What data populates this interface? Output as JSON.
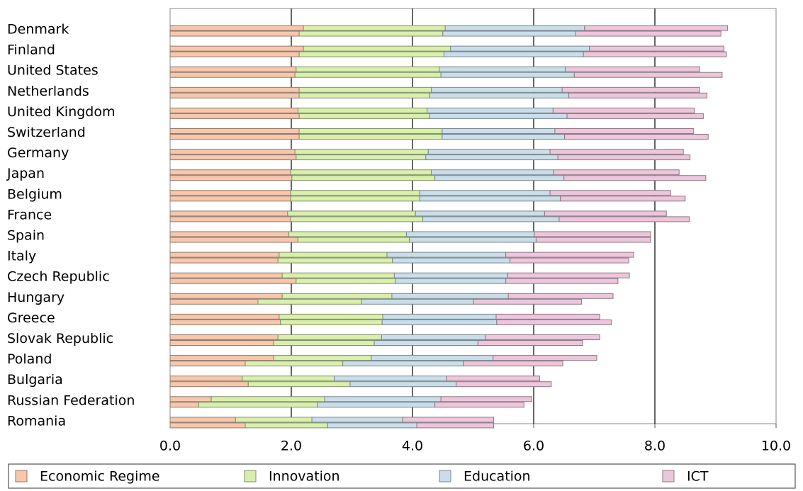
{
  "chart_data": {
    "type": "bar",
    "orientation": "horizontal",
    "stacked": true,
    "grid": true,
    "categories": [
      "Denmark",
      "Finland",
      "United States",
      "Netherlands",
      "United Kingdom",
      "Switzerland",
      "Germany",
      "Japan",
      "Belgium",
      "France",
      "Spain",
      "Italy",
      "Czech Republic",
      "Hungary",
      "Greece",
      "Slovak Republic",
      "Poland",
      "Bulgaria",
      "Russian Federation",
      "Romania"
    ],
    "series": [
      {
        "name": "Economic Regime",
        "color": "#f5c8ad",
        "values": [
          [
            2.2,
            2.13
          ],
          [
            2.2,
            2.13
          ],
          [
            2.08,
            2.06
          ],
          [
            2.13,
            2.13
          ],
          [
            2.11,
            2.13
          ],
          [
            2.13,
            2.13
          ],
          [
            2.06,
            2.08
          ],
          [
            1.99,
            2.01
          ],
          [
            1.99,
            1.99
          ],
          [
            1.94,
            1.99
          ],
          [
            1.96,
            2.11
          ],
          [
            1.8,
            1.78
          ],
          [
            1.85,
            2.08
          ],
          [
            1.85,
            1.45
          ],
          [
            1.8,
            1.82
          ],
          [
            1.78,
            1.71
          ],
          [
            1.71,
            1.24
          ],
          [
            1.19,
            1.29
          ],
          [
            0.68,
            0.47
          ],
          [
            1.08,
            1.24
          ]
        ]
      },
      {
        "name": "Innovation",
        "color": "#d8efad",
        "values": [
          [
            2.34,
            2.37
          ],
          [
            2.43,
            2.39
          ],
          [
            2.36,
            2.41
          ],
          [
            2.18,
            2.15
          ],
          [
            2.13,
            2.15
          ],
          [
            2.36,
            2.36
          ],
          [
            2.2,
            2.14
          ],
          [
            2.32,
            2.36
          ],
          [
            2.13,
            2.13
          ],
          [
            2.11,
            2.18
          ],
          [
            1.94,
            1.84
          ],
          [
            1.78,
            1.89
          ],
          [
            1.85,
            1.64
          ],
          [
            1.81,
            1.71
          ],
          [
            1.71,
            1.68
          ],
          [
            1.71,
            1.66
          ],
          [
            1.61,
            1.61
          ],
          [
            1.52,
            1.68
          ],
          [
            1.87,
            1.96
          ],
          [
            1.26,
            1.36
          ]
        ]
      },
      {
        "name": "Education",
        "color": "#cadeea",
        "values": [
          [
            2.3,
            2.19
          ],
          [
            2.29,
            2.3
          ],
          [
            2.08,
            2.2
          ],
          [
            2.16,
            2.3
          ],
          [
            2.08,
            2.27
          ],
          [
            1.86,
            2.02
          ],
          [
            2.01,
            2.18
          ],
          [
            2.02,
            2.13
          ],
          [
            2.15,
            2.32
          ],
          [
            2.13,
            2.25
          ],
          [
            2.11,
            2.09
          ],
          [
            1.96,
            1.94
          ],
          [
            1.87,
            1.82
          ],
          [
            1.92,
            1.85
          ],
          [
            1.87,
            1.89
          ],
          [
            1.71,
            1.71
          ],
          [
            2.01,
            1.99
          ],
          [
            1.85,
            1.75
          ],
          [
            1.92,
            1.94
          ],
          [
            1.5,
            1.47
          ]
        ]
      },
      {
        "name": "ICT",
        "color": "#ecc6da",
        "values": [
          [
            2.36,
            2.4
          ],
          [
            2.22,
            2.36
          ],
          [
            2.22,
            2.44
          ],
          [
            2.27,
            2.28
          ],
          [
            2.33,
            2.25
          ],
          [
            2.29,
            2.37
          ],
          [
            2.2,
            2.18
          ],
          [
            2.07,
            2.34
          ],
          [
            1.99,
            2.06
          ],
          [
            2.01,
            2.15
          ],
          [
            1.92,
            1.89
          ],
          [
            2.11,
            1.96
          ],
          [
            2.01,
            1.85
          ],
          [
            1.73,
            1.78
          ],
          [
            1.71,
            1.89
          ],
          [
            1.89,
            1.73
          ],
          [
            1.71,
            1.64
          ],
          [
            1.54,
            1.57
          ],
          [
            1.5,
            1.47
          ],
          [
            1.5,
            1.27
          ]
        ]
      }
    ],
    "xlim": [
      0,
      10
    ],
    "xticks": [
      {
        "value": 0,
        "label": "0.0"
      },
      {
        "value": 2,
        "label": "2.0"
      },
      {
        "value": 4,
        "label": "4.0"
      },
      {
        "value": 6,
        "label": "6.0"
      },
      {
        "value": 8,
        "label": "8.0"
      },
      {
        "value": 10,
        "label": "10.0"
      }
    ]
  }
}
